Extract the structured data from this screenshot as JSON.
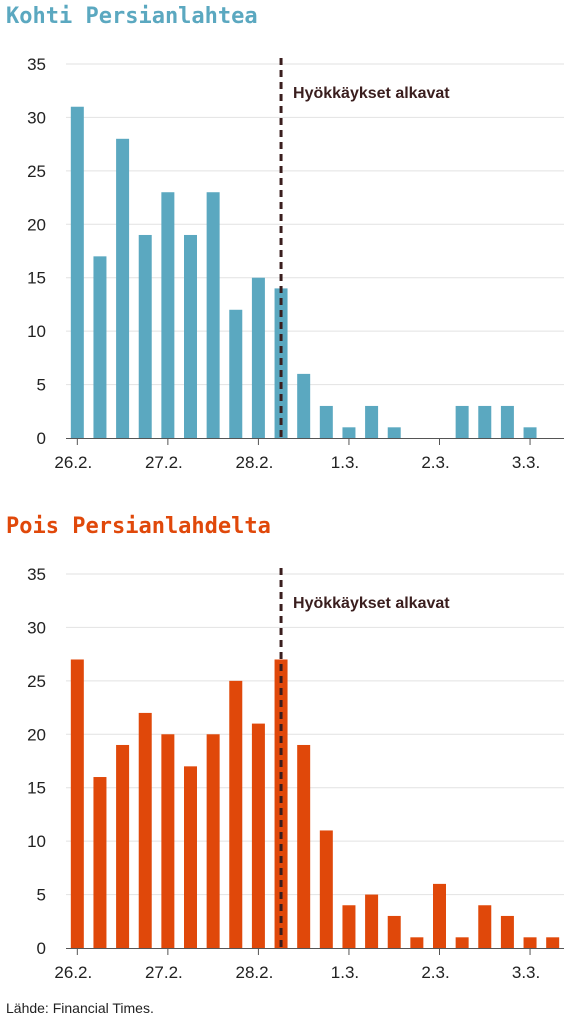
{
  "chart_data": [
    {
      "type": "bar",
      "title": "Kohti Persianlahtea",
      "color": "#5ba8c0",
      "x_tick_labels": [
        "26.2.",
        "27.2.",
        "28.2.",
        "1.3.",
        "2.3.",
        "3.3."
      ],
      "x_tick_positions": [
        0,
        4,
        8,
        12,
        16,
        20
      ],
      "values": [
        31,
        17,
        28,
        19,
        23,
        19,
        23,
        12,
        15,
        14,
        6,
        3,
        1,
        3,
        1,
        0,
        0,
        3,
        3,
        3,
        1,
        0
      ],
      "ylim": [
        0,
        35
      ],
      "yticks": [
        0,
        5,
        10,
        15,
        20,
        25,
        30,
        35
      ],
      "grid": true,
      "annotation": {
        "text": "Hyökkäykset alkavat",
        "x": 9.5,
        "color": "#3a1e1e"
      }
    },
    {
      "type": "bar",
      "title": "Pois Persianlahdelta",
      "color": "#e0480a",
      "x_tick_labels": [
        "26.2.",
        "27.2.",
        "28.2.",
        "1.3.",
        "2.3.",
        "3.3."
      ],
      "x_tick_positions": [
        0,
        4,
        8,
        12,
        16,
        20
      ],
      "values": [
        27,
        16,
        19,
        22,
        20,
        17,
        20,
        25,
        21,
        27,
        19,
        11,
        4,
        5,
        3,
        1,
        6,
        1,
        4,
        3,
        1,
        1
      ],
      "ylim": [
        0,
        35
      ],
      "yticks": [
        0,
        5,
        10,
        15,
        20,
        25,
        30,
        35
      ],
      "grid": true,
      "annotation": {
        "text": "Hyökkäykset alkavat",
        "x": 9.5,
        "color": "#3a1e1e"
      }
    }
  ],
  "source": "Lähde: Financial Times."
}
